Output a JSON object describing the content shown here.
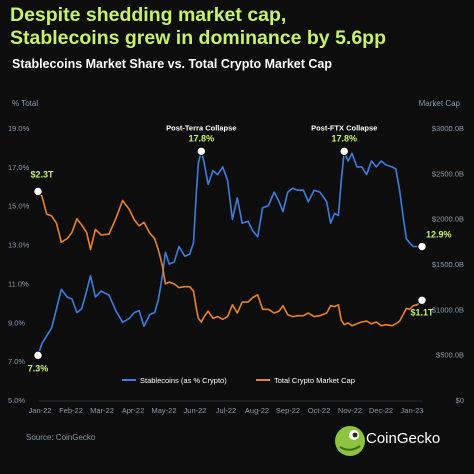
{
  "header": {
    "title_line1": "Despite shedding market cap,",
    "title_line2": "Stablecoins grew in dominance by 5.6pp",
    "subtitle": "Stablecoins Market Share vs. Total Crypto Market Cap"
  },
  "footer": {
    "source": "Source: CoinGecko",
    "brand": "CoinGecko"
  },
  "colors": {
    "background": "#0d0d0d",
    "title": "#c6f26e",
    "stablecoins_line": "#3d7de0",
    "market_cap_line": "#e8822a",
    "callout": "#c6f26e",
    "axis_text": "#8a9aab"
  },
  "chart_data": {
    "type": "line",
    "title": "Stablecoins Market Share vs. Total Crypto Market Cap",
    "left_axis_label": "% Total",
    "right_axis_label": "Market Cap",
    "xlabel": "",
    "x_ticks": [
      "Jan-22",
      "Feb-22",
      "Mar-22",
      "Apr-22",
      "May-22",
      "Jun-22",
      "Jul-22",
      "Aug-22",
      "Sep-22",
      "Oct-22",
      "Nov-22",
      "Dec-22",
      "Jan-23"
    ],
    "y_left_ticks": [
      "5.0%",
      "7.0%",
      "9.0%",
      "11.0%",
      "13.0%",
      "15.0%",
      "17.0%",
      "19.0%"
    ],
    "y_right_ticks": [
      "$0",
      "$500.0B",
      "$1000.0B",
      "$1500.0B",
      "$2000.0B",
      "$2500.0B",
      "$3000.0B"
    ],
    "y_left_range": [
      5,
      19
    ],
    "y_right_range": [
      0,
      3000
    ],
    "grid": false,
    "legend_position": "bottom",
    "series": [
      {
        "name": "Stablecoins (as % Crypto)",
        "axis": "left",
        "points": [
          [
            "2022-01-01",
            7.3
          ],
          [
            "2022-01-05",
            7.9
          ],
          [
            "2022-01-10",
            8.3
          ],
          [
            "2022-01-15",
            8.7
          ],
          [
            "2022-01-20",
            9.7
          ],
          [
            "2022-01-25",
            10.7
          ],
          [
            "2022-01-31",
            10.3
          ],
          [
            "2022-02-05",
            10.2
          ],
          [
            "2022-02-10",
            9.5
          ],
          [
            "2022-02-15",
            9.7
          ],
          [
            "2022-02-20",
            10.6
          ],
          [
            "2022-02-24",
            11.4
          ],
          [
            "2022-03-01",
            10.3
          ],
          [
            "2022-03-07",
            10.6
          ],
          [
            "2022-03-15",
            10.4
          ],
          [
            "2022-03-22",
            9.6
          ],
          [
            "2022-03-29",
            9.0
          ],
          [
            "2022-04-05",
            9.2
          ],
          [
            "2022-04-10",
            9.5
          ],
          [
            "2022-04-15",
            9.6
          ],
          [
            "2022-04-20",
            8.8
          ],
          [
            "2022-04-26",
            9.4
          ],
          [
            "2022-05-01",
            9.5
          ],
          [
            "2022-05-05",
            10.2
          ],
          [
            "2022-05-09",
            11.4
          ],
          [
            "2022-05-12",
            12.6
          ],
          [
            "2022-05-16",
            12.0
          ],
          [
            "2022-05-21",
            12.1
          ],
          [
            "2022-05-26",
            12.9
          ],
          [
            "2022-06-01",
            12.4
          ],
          [
            "2022-06-06",
            12.5
          ],
          [
            "2022-06-10",
            13.1
          ],
          [
            "2022-06-13",
            15.8
          ],
          [
            "2022-06-15",
            17.2
          ],
          [
            "2022-06-18",
            17.8
          ],
          [
            "2022-06-21",
            17.2
          ],
          [
            "2022-06-25",
            16.1
          ],
          [
            "2022-06-30",
            16.8
          ],
          [
            "2022-07-05",
            16.6
          ],
          [
            "2022-07-10",
            17.0
          ],
          [
            "2022-07-15",
            16.3
          ],
          [
            "2022-07-20",
            14.3
          ],
          [
            "2022-07-25",
            15.4
          ],
          [
            "2022-07-30",
            14.1
          ],
          [
            "2022-08-05",
            14.2
          ],
          [
            "2022-08-10",
            13.7
          ],
          [
            "2022-08-15",
            13.4
          ],
          [
            "2022-08-20",
            14.9
          ],
          [
            "2022-08-26",
            15.0
          ],
          [
            "2022-09-01",
            15.7
          ],
          [
            "2022-09-06",
            15.2
          ],
          [
            "2022-09-10",
            14.7
          ],
          [
            "2022-09-15",
            15.7
          ],
          [
            "2022-09-20",
            15.9
          ],
          [
            "2022-09-25",
            15.8
          ],
          [
            "2022-10-01",
            15.8
          ],
          [
            "2022-10-06",
            15.2
          ],
          [
            "2022-10-12",
            15.8
          ],
          [
            "2022-10-18",
            15.7
          ],
          [
            "2022-10-25",
            15.2
          ],
          [
            "2022-10-29",
            14.1
          ],
          [
            "2022-11-02",
            14.6
          ],
          [
            "2022-11-06",
            14.5
          ],
          [
            "2022-11-09",
            16.3
          ],
          [
            "2022-11-12",
            17.8
          ],
          [
            "2022-11-16",
            17.3
          ],
          [
            "2022-11-20",
            17.7
          ],
          [
            "2022-11-25",
            17.0
          ],
          [
            "2022-11-30",
            17.0
          ],
          [
            "2022-12-05",
            16.6
          ],
          [
            "2022-12-10",
            17.3
          ],
          [
            "2022-12-15",
            17.0
          ],
          [
            "2022-12-20",
            17.3
          ],
          [
            "2022-12-25",
            17.1
          ],
          [
            "2022-12-31",
            17.0
          ],
          [
            "2023-01-04",
            16.9
          ],
          [
            "2023-01-08",
            15.8
          ],
          [
            "2023-01-12",
            14.3
          ],
          [
            "2023-01-15",
            13.3
          ],
          [
            "2023-01-18",
            13.1
          ],
          [
            "2023-01-22",
            12.9
          ],
          [
            "2023-01-26",
            12.9
          ],
          [
            "2023-01-31",
            12.9
          ]
        ]
      },
      {
        "name": "Total Crypto Market Cap",
        "axis": "right",
        "points": [
          [
            "2022-01-01",
            2300
          ],
          [
            "2022-01-05",
            2250
          ],
          [
            "2022-01-10",
            2050
          ],
          [
            "2022-01-15",
            2030
          ],
          [
            "2022-01-20",
            1950
          ],
          [
            "2022-01-25",
            1740
          ],
          [
            "2022-01-31",
            1780
          ],
          [
            "2022-02-05",
            1850
          ],
          [
            "2022-02-10",
            2000
          ],
          [
            "2022-02-15",
            1930
          ],
          [
            "2022-02-20",
            1850
          ],
          [
            "2022-02-24",
            1660
          ],
          [
            "2022-03-01",
            1880
          ],
          [
            "2022-03-07",
            1820
          ],
          [
            "2022-03-15",
            1830
          ],
          [
            "2022-03-22",
            2000
          ],
          [
            "2022-03-29",
            2200
          ],
          [
            "2022-04-05",
            2100
          ],
          [
            "2022-04-10",
            1990
          ],
          [
            "2022-04-15",
            1920
          ],
          [
            "2022-04-20",
            1960
          ],
          [
            "2022-04-26",
            1840
          ],
          [
            "2022-05-01",
            1780
          ],
          [
            "2022-05-05",
            1650
          ],
          [
            "2022-05-09",
            1480
          ],
          [
            "2022-05-12",
            1280
          ],
          [
            "2022-05-16",
            1300
          ],
          [
            "2022-05-21",
            1280
          ],
          [
            "2022-05-26",
            1240
          ],
          [
            "2022-06-01",
            1250
          ],
          [
            "2022-06-06",
            1250
          ],
          [
            "2022-06-10",
            1200
          ],
          [
            "2022-06-13",
            1000
          ],
          [
            "2022-06-15",
            900
          ],
          [
            "2022-06-18",
            860
          ],
          [
            "2022-06-21",
            920
          ],
          [
            "2022-06-25",
            980
          ],
          [
            "2022-06-30",
            900
          ],
          [
            "2022-07-05",
            920
          ],
          [
            "2022-07-10",
            890
          ],
          [
            "2022-07-15",
            920
          ],
          [
            "2022-07-20",
            1050
          ],
          [
            "2022-07-25",
            960
          ],
          [
            "2022-07-30",
            1080
          ],
          [
            "2022-08-05",
            1080
          ],
          [
            "2022-08-10",
            1130
          ],
          [
            "2022-08-15",
            1160
          ],
          [
            "2022-08-20",
            1000
          ],
          [
            "2022-08-26",
            1000
          ],
          [
            "2022-09-01",
            960
          ],
          [
            "2022-09-06",
            980
          ],
          [
            "2022-09-10",
            1040
          ],
          [
            "2022-09-15",
            940
          ],
          [
            "2022-09-20",
            920
          ],
          [
            "2022-09-25",
            930
          ],
          [
            "2022-10-01",
            930
          ],
          [
            "2022-10-06",
            960
          ],
          [
            "2022-10-12",
            920
          ],
          [
            "2022-10-18",
            930
          ],
          [
            "2022-10-25",
            960
          ],
          [
            "2022-10-29",
            1040
          ],
          [
            "2022-11-02",
            1030
          ],
          [
            "2022-11-06",
            1050
          ],
          [
            "2022-11-09",
            880
          ],
          [
            "2022-11-12",
            830
          ],
          [
            "2022-11-16",
            850
          ],
          [
            "2022-11-20",
            820
          ],
          [
            "2022-11-25",
            840
          ],
          [
            "2022-11-30",
            860
          ],
          [
            "2022-12-05",
            870
          ],
          [
            "2022-12-10",
            840
          ],
          [
            "2022-12-15",
            860
          ],
          [
            "2022-12-20",
            820
          ],
          [
            "2022-12-25",
            830
          ],
          [
            "2022-12-31",
            820
          ],
          [
            "2023-01-04",
            840
          ],
          [
            "2023-01-08",
            870
          ],
          [
            "2023-01-12",
            950
          ],
          [
            "2023-01-15",
            1010
          ],
          [
            "2023-01-18",
            1000
          ],
          [
            "2023-01-22",
            1040
          ],
          [
            "2023-01-26",
            1050
          ],
          [
            "2023-01-31",
            1100
          ]
        ]
      }
    ],
    "annotations": [
      {
        "label": "Post-Terra Collapse",
        "value_label": "17.8%",
        "x": "2022-06-18",
        "y": 17.8,
        "axis": "left"
      },
      {
        "label": "Post-FTX Collapse",
        "value_label": "17.8%",
        "x": "2022-11-12",
        "y": 17.8,
        "axis": "left"
      },
      {
        "label": "",
        "value_label": "$2.3T",
        "x": "2022-01-01",
        "y": 2300,
        "axis": "right"
      },
      {
        "label": "",
        "value_label": "7.3%",
        "x": "2022-01-01",
        "y": 7.3,
        "axis": "left"
      },
      {
        "label": "",
        "value_label": "12.9%",
        "x": "2023-01-31",
        "y": 12.9,
        "axis": "left"
      },
      {
        "label": "",
        "value_label": "$1.1T",
        "x": "2023-01-31",
        "y": 1100,
        "axis": "right"
      }
    ]
  }
}
